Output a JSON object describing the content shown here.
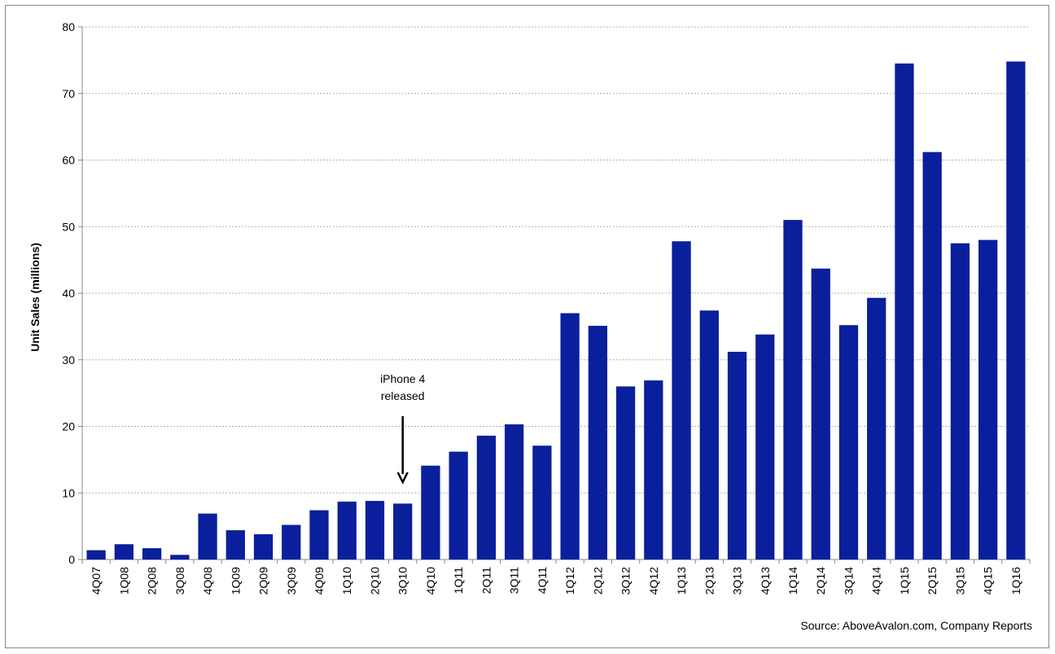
{
  "chart_data": {
    "type": "bar",
    "title": "",
    "xlabel": "",
    "ylabel": "Unit Sales (millions)",
    "ylim": [
      0,
      80
    ],
    "yticks": [
      0,
      10,
      20,
      30,
      40,
      50,
      60,
      70,
      80
    ],
    "grid": true,
    "categories": [
      "4Q07",
      "1Q08",
      "2Q08",
      "3Q08",
      "4Q08",
      "1Q09",
      "2Q09",
      "3Q09",
      "4Q09",
      "1Q10",
      "2Q10",
      "3Q10",
      "4Q10",
      "1Q11",
      "2Q11",
      "3Q11",
      "4Q11",
      "1Q12",
      "2Q12",
      "3Q12",
      "4Q12",
      "1Q13",
      "2Q13",
      "3Q13",
      "4Q13",
      "1Q14",
      "2Q14",
      "3Q14",
      "4Q14",
      "1Q15",
      "2Q15",
      "3Q15",
      "4Q15",
      "1Q16"
    ],
    "values": [
      1.4,
      2.3,
      1.7,
      0.7,
      6.9,
      4.4,
      3.8,
      5.2,
      7.4,
      8.7,
      8.8,
      8.4,
      14.1,
      16.2,
      18.6,
      20.3,
      17.1,
      37.0,
      35.1,
      26.0,
      26.9,
      47.8,
      37.4,
      31.2,
      33.8,
      51.0,
      43.7,
      35.2,
      39.3,
      74.5,
      61.2,
      47.5,
      48.0,
      74.8
    ],
    "bar_color": "#0a1f9c",
    "grid_color": "#b0b0b0",
    "annotations": [
      {
        "lines": [
          "iPhone 4",
          "released"
        ],
        "category": "3Q10",
        "arrow": "down"
      }
    ],
    "source_note": "Source: AboveAvalon.com, Company Reports"
  }
}
